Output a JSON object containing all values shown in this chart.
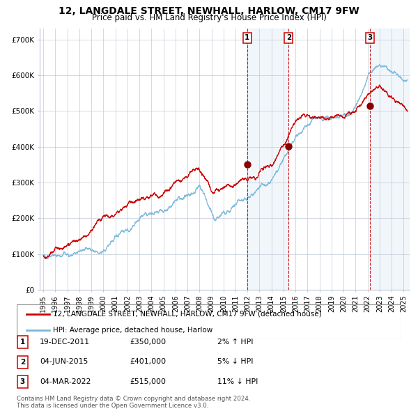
{
  "title": "12, LANGDALE STREET, NEWHALL, HARLOW, CM17 9FW",
  "subtitle": "Price paid vs. HM Land Registry's House Price Index (HPI)",
  "title_fontsize": 10,
  "subtitle_fontsize": 8.5,
  "ylim": [
    0,
    730000
  ],
  "yticks": [
    0,
    100000,
    200000,
    300000,
    400000,
    500000,
    600000,
    700000
  ],
  "ytick_labels": [
    "£0",
    "£100K",
    "£200K",
    "£300K",
    "£400K",
    "£500K",
    "£600K",
    "£700K"
  ],
  "hpi_color": "#7ab8d9",
  "price_color": "#cc0000",
  "marker_color": "#8b0000",
  "vline_color": "#cc0000",
  "shade_color": "#c8dff0",
  "grid_color": "#c0c8d4",
  "background_color": "#ffffff",
  "transactions": [
    {
      "label": "1",
      "date_num": 2011.97,
      "price": 350000,
      "note": "19-DEC-2011",
      "price_str": "£350,000",
      "pct": "2% ↑ HPI"
    },
    {
      "label": "2",
      "date_num": 2015.43,
      "price": 401000,
      "note": "04-JUN-2015",
      "price_str": "£401,000",
      "pct": "5% ↓ HPI"
    },
    {
      "label": "3",
      "date_num": 2022.17,
      "price": 515000,
      "note": "04-MAR-2022",
      "price_str": "£515,000",
      "pct": "11% ↓ HPI"
    }
  ],
  "legend_line1": "12, LANGDALE STREET, NEWHALL, HARLOW, CM17 9FW (detached house)",
  "legend_line2": "HPI: Average price, detached house, Harlow",
  "footnote1": "Contains HM Land Registry data © Crown copyright and database right 2024.",
  "footnote2": "This data is licensed under the Open Government Licence v3.0.",
  "xstart": 1994.7,
  "xend": 2025.5
}
